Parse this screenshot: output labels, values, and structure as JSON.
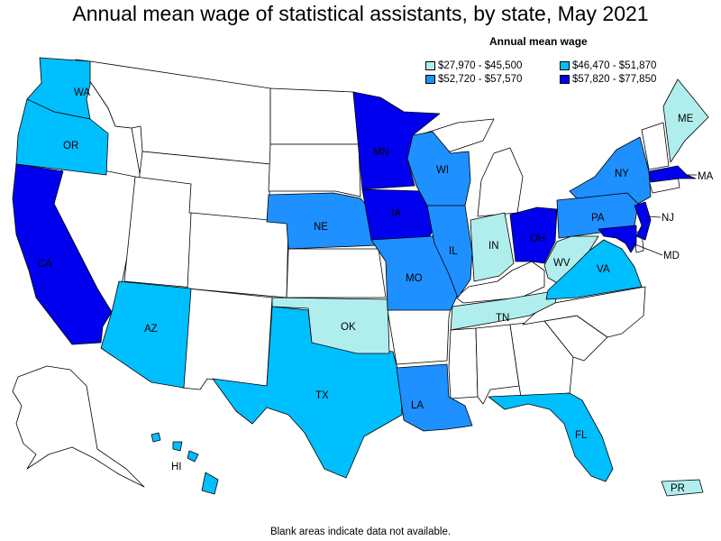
{
  "title": "Annual mean wage of statistical assistants, by state, May 2021",
  "legend": {
    "title": "Annual mean wage",
    "items": [
      {
        "label": "$27,970 - $45,500",
        "color": "#b0eeee"
      },
      {
        "label": "$46,470 - $51,870",
        "color": "#00bfff"
      },
      {
        "label": "$52,720 - $57,570",
        "color": "#1e90ff"
      },
      {
        "label": "$57,820 - $77,850",
        "color": "#0000ee"
      }
    ]
  },
  "footnote": "Blank areas indicate data not available.",
  "colors": {
    "blank": "#ffffff",
    "border": "#000000"
  },
  "states": {
    "WA": {
      "label": "WA",
      "tier": 1
    },
    "OR": {
      "label": "OR",
      "tier": 1
    },
    "CA": {
      "label": "CA",
      "tier": 3
    },
    "AZ": {
      "label": "AZ",
      "tier": 1
    },
    "TX": {
      "label": "TX",
      "tier": 1
    },
    "OK": {
      "label": "OK",
      "tier": 0
    },
    "NE": {
      "label": "NE",
      "tier": 2
    },
    "MN": {
      "label": "MN",
      "tier": 3
    },
    "IA": {
      "label": "IA",
      "tier": 3
    },
    "MO": {
      "label": "MO",
      "tier": 2
    },
    "LA": {
      "label": "LA",
      "tier": 2
    },
    "WI": {
      "label": "WI",
      "tier": 2
    },
    "IL": {
      "label": "IL",
      "tier": 2
    },
    "IN": {
      "label": "IN",
      "tier": 0
    },
    "OH": {
      "label": "OH",
      "tier": 3
    },
    "TN": {
      "label": "TN",
      "tier": 0
    },
    "WV": {
      "label": "WV",
      "tier": 0
    },
    "VA": {
      "label": "VA",
      "tier": 1
    },
    "PA": {
      "label": "PA",
      "tier": 2
    },
    "NY": {
      "label": "NY",
      "tier": 2
    },
    "ME": {
      "label": "ME",
      "tier": 0
    },
    "MA": {
      "label": "MA",
      "tier": 3
    },
    "NJ": {
      "label": "NJ",
      "tier": 3
    },
    "MD": {
      "label": "MD",
      "tier": 3
    },
    "FL": {
      "label": "FL",
      "tier": 1
    },
    "HI": {
      "label": "HI",
      "tier": 1
    },
    "PR": {
      "label": "PR",
      "tier": 0
    }
  }
}
